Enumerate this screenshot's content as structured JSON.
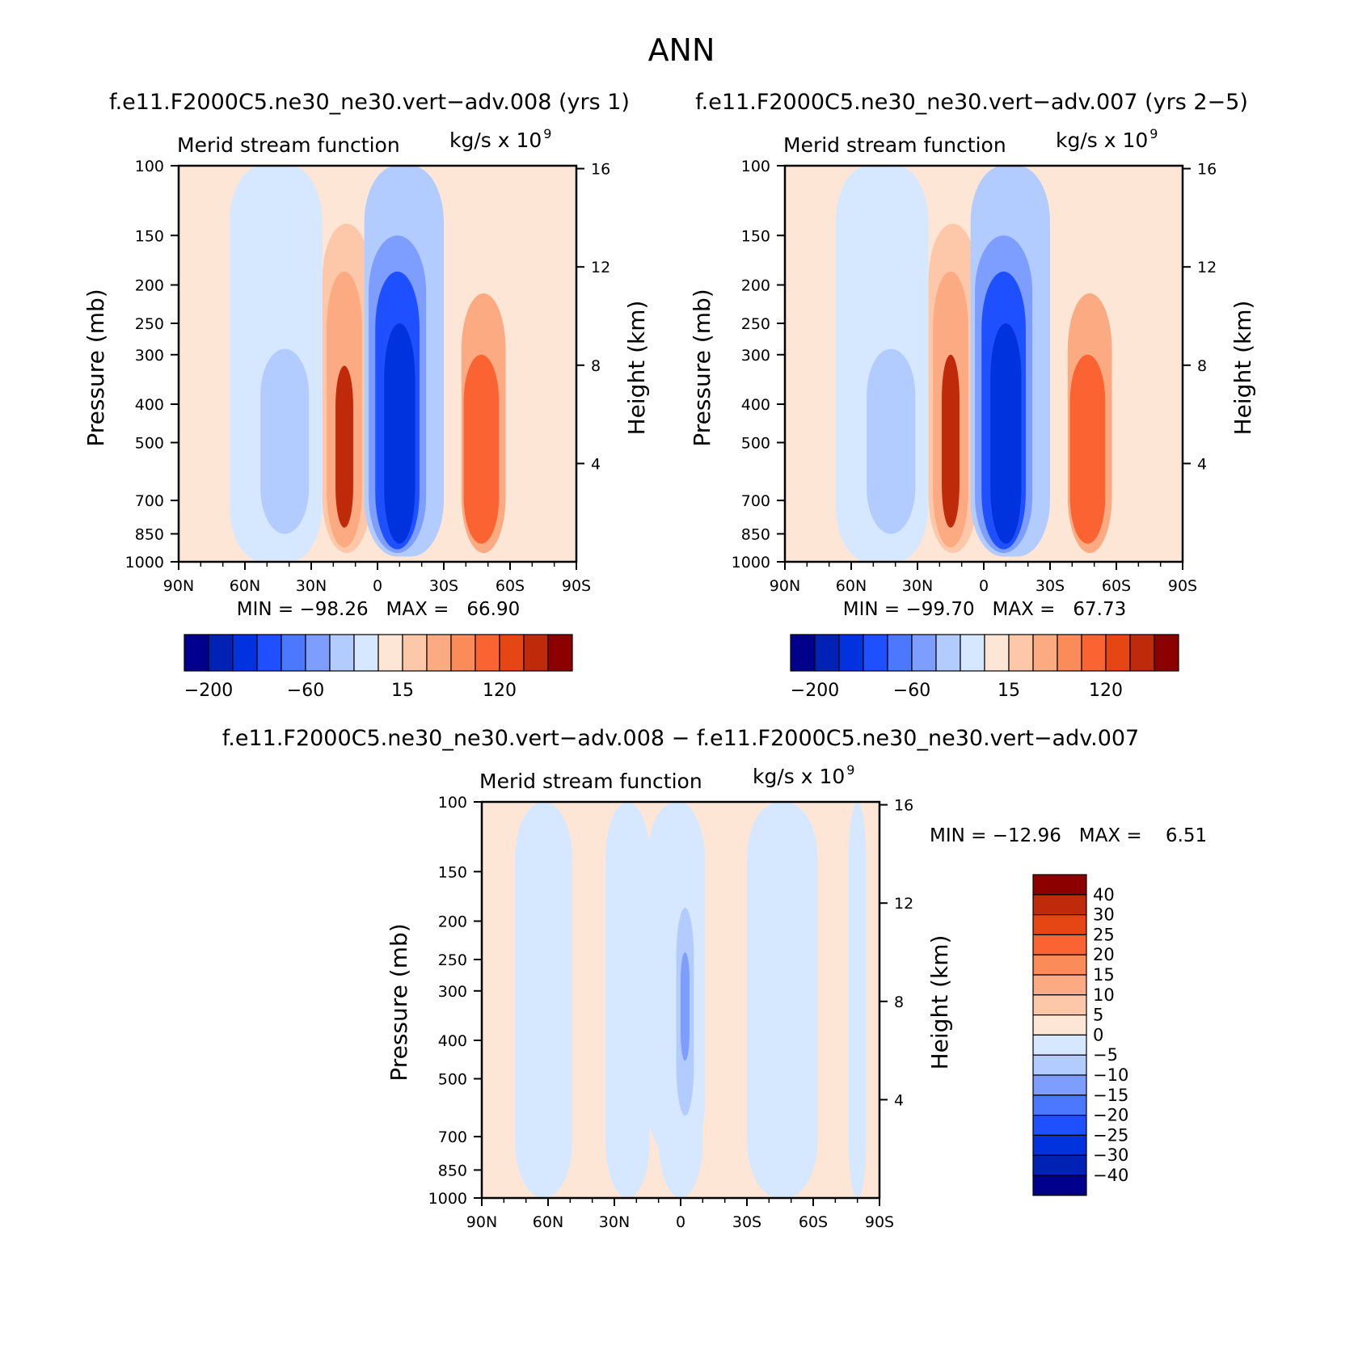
{
  "page_title": "ANN",
  "colors": {
    "neg": [
      "#00008c",
      "#0022b4",
      "#0033dd",
      "#1e50ff",
      "#4b78ff",
      "#7d9eff",
      "#b3ccff",
      "#d6e8ff"
    ],
    "pos": [
      "#fde6d6",
      "#fdc8aa",
      "#fcaa82",
      "#fb8c5a",
      "#fb6432",
      "#e64614",
      "#be2a0a",
      "#8c0000"
    ]
  },
  "chart_data": [
    {
      "type": "heatmap",
      "panel": "top-left",
      "title": "f.e11.F2000C5.ne30_ne30.vert−adv.008 (yrs 1)",
      "left_label": "Merid stream function",
      "right_label": "kg/s x 10",
      "right_label_exp": "9",
      "ylabel": "Pressure (mb)",
      "y2label": "Height (km)",
      "x_ticks": [
        "90N",
        "60N",
        "30N",
        "0",
        "30S",
        "60S",
        "90S"
      ],
      "y_ticks": [
        "100",
        "150",
        "200",
        "250",
        "300",
        "400",
        "500",
        "700",
        "850",
        "1000"
      ],
      "y2_ticks": [
        "16",
        "12",
        "8",
        "4"
      ],
      "min_max_text": "MIN = −98.26   MAX =   66.90",
      "colorbar_labels": [
        "−200",
        "−60",
        "15",
        "120"
      ],
      "regions": [
        {
          "lat_center": 46,
          "lat_halfwidth": 21,
          "p_top": 100,
          "p_bottom": 1000,
          "value": -5
        },
        {
          "lat_center": 14,
          "lat_halfwidth": 11,
          "p_top": 140,
          "p_bottom": 950,
          "value": 15
        },
        {
          "lat_center": -12,
          "lat_halfwidth": 18,
          "p_top": 100,
          "p_bottom": 970,
          "value": -15
        },
        {
          "lat_center": -50,
          "lat_halfwidth": 15,
          "p_top": 110,
          "p_bottom": 970,
          "value": 10
        },
        {
          "lat_center": 42,
          "lat_halfwidth": 11,
          "p_top": 290,
          "p_bottom": 850,
          "value": -15
        },
        {
          "lat_center": 15,
          "lat_halfwidth": 8,
          "p_top": 185,
          "p_bottom": 920,
          "value": 40
        },
        {
          "lat_center": 15,
          "lat_halfwidth": 4,
          "p_top": 320,
          "p_bottom": 820,
          "value": 90
        },
        {
          "lat_center": -9,
          "lat_halfwidth": 13,
          "p_top": 150,
          "p_bottom": 950,
          "value": -40
        },
        {
          "lat_center": -9,
          "lat_halfwidth": 10,
          "p_top": 185,
          "p_bottom": 930,
          "value": -60
        },
        {
          "lat_center": -10,
          "lat_halfwidth": 7,
          "p_top": 250,
          "p_bottom": 900,
          "value": -90
        },
        {
          "lat_center": -11,
          "lat_halfwidth": 3,
          "p_top": 600,
          "p_bottom": 830,
          "value": -100
        },
        {
          "lat_center": -48,
          "lat_halfwidth": 10,
          "p_top": 210,
          "p_bottom": 950,
          "value": 30
        },
        {
          "lat_center": -47,
          "lat_halfwidth": 8,
          "p_top": 300,
          "p_bottom": 900,
          "value": 60
        }
      ]
    },
    {
      "type": "heatmap",
      "panel": "top-right",
      "title": "f.e11.F2000C5.ne30_ne30.vert−adv.007 (yrs 2−5)",
      "left_label": "Merid stream function",
      "right_label": "kg/s x 10",
      "right_label_exp": "9",
      "ylabel": "Pressure (mb)",
      "y2label": "Height (km)",
      "x_ticks": [
        "90N",
        "60N",
        "30N",
        "0",
        "30S",
        "60S",
        "90S"
      ],
      "y_ticks": [
        "100",
        "150",
        "200",
        "250",
        "300",
        "400",
        "500",
        "700",
        "850",
        "1000"
      ],
      "y2_ticks": [
        "16",
        "12",
        "8",
        "4"
      ],
      "min_max_text": "MIN = −99.70   MAX =   67.73",
      "colorbar_labels": [
        "−200",
        "−60",
        "15",
        "120"
      ],
      "regions": [
        {
          "lat_center": 46,
          "lat_halfwidth": 21,
          "p_top": 100,
          "p_bottom": 1000,
          "value": -5
        },
        {
          "lat_center": 14,
          "lat_halfwidth": 11,
          "p_top": 140,
          "p_bottom": 950,
          "value": 15
        },
        {
          "lat_center": -12,
          "lat_halfwidth": 18,
          "p_top": 100,
          "p_bottom": 970,
          "value": -15
        },
        {
          "lat_center": -50,
          "lat_halfwidth": 15,
          "p_top": 110,
          "p_bottom": 970,
          "value": 10
        },
        {
          "lat_center": 42,
          "lat_halfwidth": 11,
          "p_top": 290,
          "p_bottom": 850,
          "value": -15
        },
        {
          "lat_center": 15,
          "lat_halfwidth": 8,
          "p_top": 185,
          "p_bottom": 920,
          "value": 40
        },
        {
          "lat_center": 15,
          "lat_halfwidth": 4,
          "p_top": 300,
          "p_bottom": 820,
          "value": 90
        },
        {
          "lat_center": -9,
          "lat_halfwidth": 13,
          "p_top": 150,
          "p_bottom": 950,
          "value": -40
        },
        {
          "lat_center": -9,
          "lat_halfwidth": 10,
          "p_top": 185,
          "p_bottom": 930,
          "value": -60
        },
        {
          "lat_center": -10,
          "lat_halfwidth": 7,
          "p_top": 250,
          "p_bottom": 900,
          "value": -90
        },
        {
          "lat_center": -11,
          "lat_halfwidth": 3,
          "p_top": 600,
          "p_bottom": 830,
          "value": -100
        },
        {
          "lat_center": -48,
          "lat_halfwidth": 10,
          "p_top": 210,
          "p_bottom": 950,
          "value": 30
        },
        {
          "lat_center": -47,
          "lat_halfwidth": 8,
          "p_top": 300,
          "p_bottom": 900,
          "value": 60
        }
      ]
    },
    {
      "type": "heatmap",
      "panel": "bottom",
      "title": "f.e11.F2000C5.ne30_ne30.vert−adv.008 − f.e11.F2000C5.ne30_ne30.vert−adv.007",
      "left_label": "Merid stream function",
      "right_label": "kg/s x 10",
      "right_label_exp": "9",
      "ylabel": "Pressure (mb)",
      "y2label": "Height (km)",
      "x_ticks": [
        "90N",
        "60N",
        "30N",
        "0",
        "30S",
        "60S",
        "90S"
      ],
      "y_ticks": [
        "100",
        "150",
        "200",
        "250",
        "300",
        "400",
        "500",
        "700",
        "850",
        "1000"
      ],
      "y2_ticks": [
        "16",
        "12",
        "8",
        "4"
      ],
      "min_max_text": "MIN = −12.96   MAX =    6.51",
      "colorbar_labels": [
        "40",
        "30",
        "25",
        "20",
        "15",
        "10",
        "5",
        "0",
        "−5",
        "−10",
        "−15",
        "−20",
        "−25",
        "−30",
        "−40"
      ],
      "regions": [
        {
          "lat_center": 62,
          "lat_halfwidth": 13,
          "p_top": 100,
          "p_bottom": 1000,
          "value": -3
        },
        {
          "lat_center": 24,
          "lat_halfwidth": 10,
          "p_top": 100,
          "p_bottom": 1000,
          "value": -3
        },
        {
          "lat_center": -46,
          "lat_halfwidth": 16,
          "p_top": 100,
          "p_bottom": 1000,
          "value": -3
        },
        {
          "lat_center": 0,
          "lat_halfwidth": 10,
          "p_top": 100,
          "p_bottom": 1000,
          "value": -3
        },
        {
          "lat_center": 2,
          "lat_halfwidth": 13,
          "p_top": 100,
          "p_bottom": 800,
          "value": -3
        },
        {
          "lat_center": -80,
          "lat_halfwidth": 4,
          "p_top": 100,
          "p_bottom": 1000,
          "value": -3
        },
        {
          "lat_center": -2,
          "lat_halfwidth": 4,
          "p_top": 185,
          "p_bottom": 620,
          "value": -7
        },
        {
          "lat_center": -2,
          "lat_halfwidth": 2,
          "p_top": 240,
          "p_bottom": 450,
          "value": -12
        }
      ]
    }
  ]
}
